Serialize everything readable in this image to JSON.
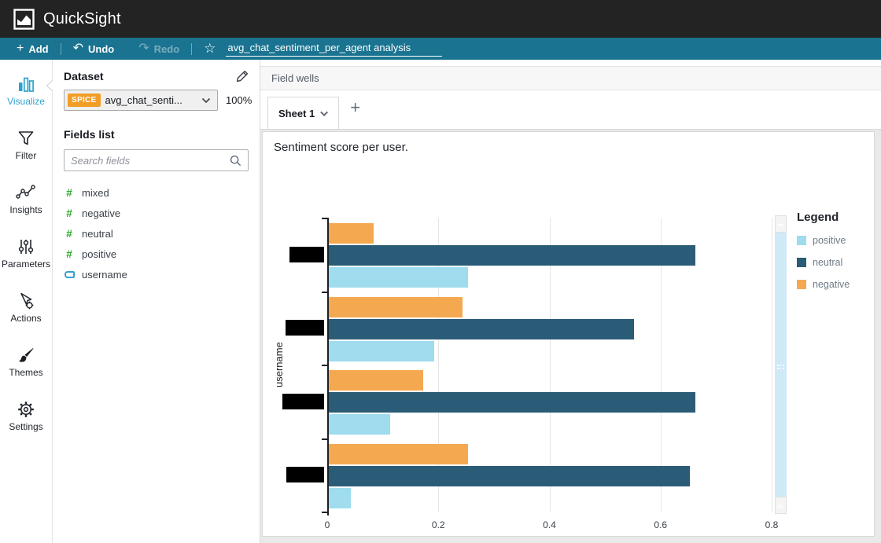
{
  "app": {
    "brand": "QuickSight"
  },
  "toolbar": {
    "add": "Add",
    "undo": "Undo",
    "redo": "Redo",
    "analysis_title": "avg_chat_sentiment_per_agent analysis"
  },
  "sidebar": {
    "items": [
      {
        "label": "Visualize",
        "active": true
      },
      {
        "label": "Filter"
      },
      {
        "label": "Insights"
      },
      {
        "label": "Parameters"
      },
      {
        "label": "Actions"
      },
      {
        "label": "Themes"
      },
      {
        "label": "Settings"
      }
    ]
  },
  "panel": {
    "dataset_label": "Dataset",
    "spice_badge": "SPICE",
    "dataset_name": "avg_chat_senti...",
    "progress": "100%",
    "fields_list_label": "Fields list",
    "search_placeholder": "Search fields",
    "fields": [
      {
        "name": "mixed",
        "type": "numeric"
      },
      {
        "name": "negative",
        "type": "numeric"
      },
      {
        "name": "neutral",
        "type": "numeric"
      },
      {
        "name": "positive",
        "type": "numeric"
      },
      {
        "name": "username",
        "type": "string"
      }
    ]
  },
  "main": {
    "field_wells_label": "Field wells",
    "sheet_tab_label": "Sheet 1",
    "add_sheet_label": "+"
  },
  "chart_data": {
    "type": "bar",
    "orientation": "horizontal",
    "title": "Sentiment score per user.",
    "ylabel": "username",
    "categories": [
      "(redacted)",
      "(redacted)",
      "(redacted)",
      "(redacted)"
    ],
    "category_labels_redacted": true,
    "series": [
      {
        "name": "negative",
        "color": "#f4a950",
        "values": [
          0.08,
          0.24,
          0.17,
          0.25
        ]
      },
      {
        "name": "neutral",
        "color": "#2a5c77",
        "values": [
          0.66,
          0.55,
          0.66,
          0.65
        ]
      },
      {
        "name": "positive",
        "color": "#9edcee",
        "values": [
          0.25,
          0.19,
          0.11,
          0.04
        ]
      }
    ],
    "legend": {
      "title": "Legend",
      "position": "right",
      "entries": [
        "positive",
        "neutral",
        "negative"
      ]
    },
    "xticks": [
      0,
      0.2,
      0.4,
      0.6,
      0.8
    ],
    "xlim": [
      0,
      0.8
    ],
    "grid": true
  }
}
